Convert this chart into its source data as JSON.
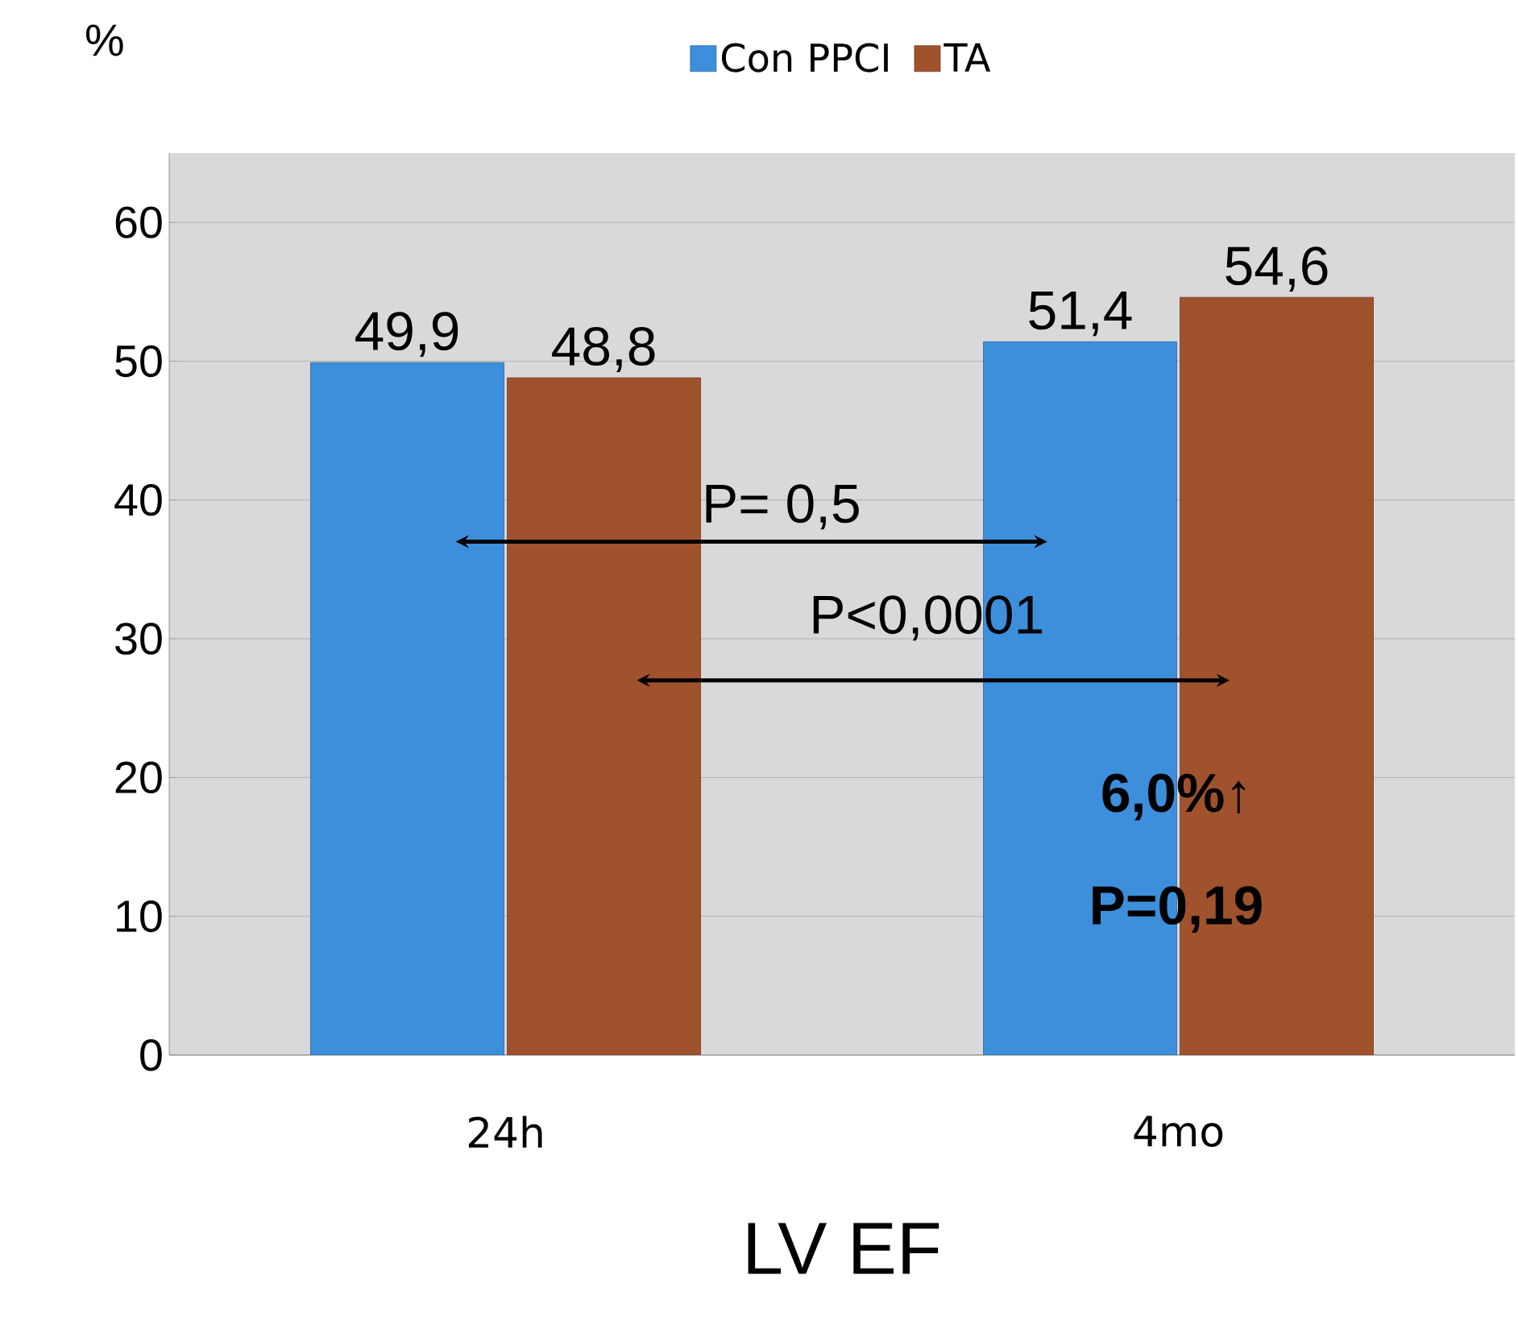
{
  "chart_data": {
    "type": "bar",
    "xlabel": "LV EF",
    "ylabel": "%",
    "categories": [
      "24h",
      "4mo"
    ],
    "series": [
      {
        "name": "Con PPCI",
        "color": "#3d8fdc",
        "values": [
          49.9,
          51.4
        ],
        "value_labels": [
          "49,9",
          "51,4"
        ]
      },
      {
        "name": "TA",
        "color": "#a0522d",
        "values": [
          48.8,
          54.6
        ],
        "value_labels": [
          "48,8",
          "54,6"
        ]
      }
    ],
    "ylim": [
      0,
      65
    ],
    "yticks": [
      0,
      10,
      20,
      30,
      40,
      50,
      60
    ],
    "grid": "y",
    "legend": "top",
    "annotations": [
      "P= 0,5",
      "P<0,0001",
      "6,0%↑",
      "P=0,19"
    ]
  }
}
